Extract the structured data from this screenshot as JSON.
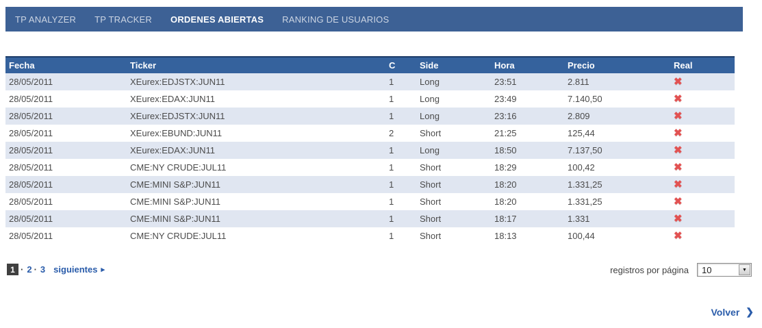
{
  "nav": {
    "items": [
      {
        "label": "TP ANALYZER",
        "active": false
      },
      {
        "label": "TP TRACKER",
        "active": false
      },
      {
        "label": "ORDENES ABIERTAS",
        "active": true
      },
      {
        "label": "RANKING DE USUARIOS",
        "active": false
      }
    ]
  },
  "table": {
    "columns": [
      "Fecha",
      "Ticker",
      "C",
      "Side",
      "Hora",
      "Precio",
      "Real"
    ],
    "field_order": [
      "fecha",
      "ticker",
      "c",
      "side",
      "hora",
      "precio"
    ],
    "delete_icon": "✖",
    "rows": [
      {
        "fecha": "28/05/2011",
        "ticker": "XEurex:EDJSTX:JUN11",
        "c": "1",
        "side": "Long",
        "hora": "23:51",
        "precio": "2.811"
      },
      {
        "fecha": "28/05/2011",
        "ticker": "XEurex:EDAX:JUN11",
        "c": "1",
        "side": "Long",
        "hora": "23:49",
        "precio": "7.140,50"
      },
      {
        "fecha": "28/05/2011",
        "ticker": "XEurex:EDJSTX:JUN11",
        "c": "1",
        "side": "Long",
        "hora": "23:16",
        "precio": "2.809"
      },
      {
        "fecha": "28/05/2011",
        "ticker": "XEurex:EBUND:JUN11",
        "c": "2",
        "side": "Short",
        "hora": "21:25",
        "precio": "125,44"
      },
      {
        "fecha": "28/05/2011",
        "ticker": "XEurex:EDAX:JUN11",
        "c": "1",
        "side": "Long",
        "hora": "18:50",
        "precio": "7.137,50"
      },
      {
        "fecha": "28/05/2011",
        "ticker": "CME:NY CRUDE:JUL11",
        "c": "1",
        "side": "Short",
        "hora": "18:29",
        "precio": "100,42"
      },
      {
        "fecha": "28/05/2011",
        "ticker": "CME:MINI S&P:JUN11",
        "c": "1",
        "side": "Short",
        "hora": "18:20",
        "precio": "1.331,25"
      },
      {
        "fecha": "28/05/2011",
        "ticker": "CME:MINI S&P:JUN11",
        "c": "1",
        "side": "Short",
        "hora": "18:20",
        "precio": "1.331,25"
      },
      {
        "fecha": "28/05/2011",
        "ticker": "CME:MINI S&P:JUN11",
        "c": "1",
        "side": "Short",
        "hora": "18:17",
        "precio": "1.331"
      },
      {
        "fecha": "28/05/2011",
        "ticker": "CME:NY CRUDE:JUL11",
        "c": "1",
        "side": "Short",
        "hora": "18:13",
        "precio": "100,44"
      }
    ]
  },
  "pagination": {
    "current": "1",
    "separator": "·",
    "pages": [
      "2",
      "3"
    ],
    "next_label": "siguientes",
    "next_arrow": "▸"
  },
  "page_size": {
    "label": "registros por página",
    "value": "10",
    "dropdown_icon": "▼"
  },
  "back": {
    "label": "Volver",
    "arrow": "❯"
  },
  "colors": {
    "nav-bg": "#3d6195",
    "header-bg": "#35629d",
    "header-border": "#1d3c68",
    "row-alt": "#e0e6f1",
    "link": "#2a5caa",
    "x-red": "#e25252",
    "text": "#4b4b4b",
    "pager-current-bg": "#404040"
  }
}
